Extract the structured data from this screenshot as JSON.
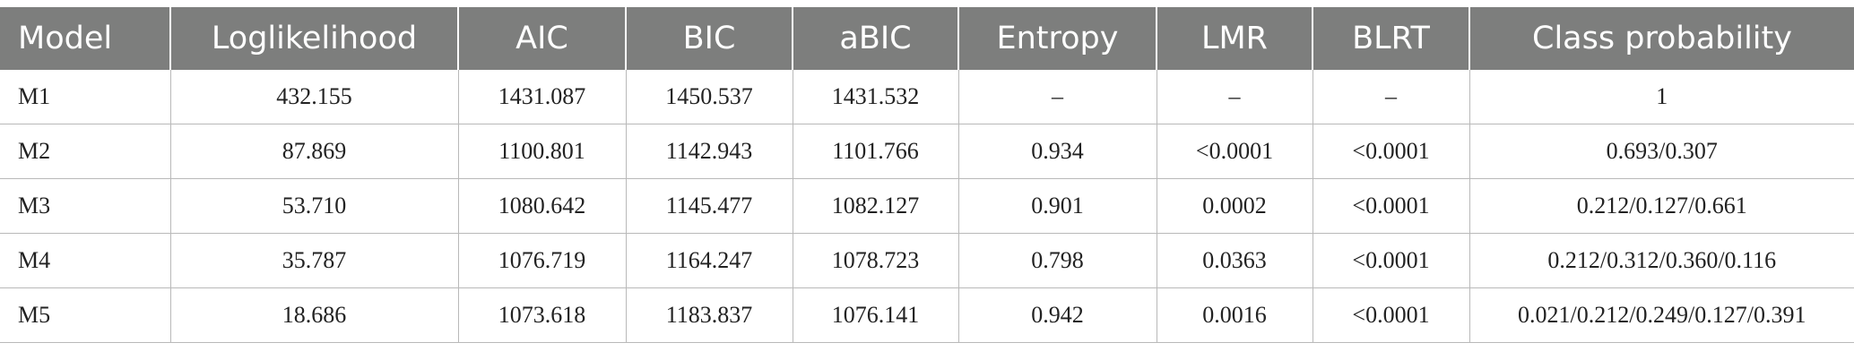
{
  "table": {
    "headers": [
      "Model",
      "Loglikelihood",
      "AIC",
      "BIC",
      "aBIC",
      "Entropy",
      "LMR",
      "BLRT",
      "Class probability"
    ],
    "rows": [
      [
        "M1",
        "432.155",
        "1431.087",
        "1450.537",
        "1431.532",
        "–",
        "–",
        "–",
        "1"
      ],
      [
        "M2",
        "87.869",
        "1100.801",
        "1142.943",
        "1101.766",
        "0.934",
        "<0.0001",
        "<0.0001",
        "0.693/0.307"
      ],
      [
        "M3",
        "53.710",
        "1080.642",
        "1145.477",
        "1082.127",
        "0.901",
        "0.0002",
        "<0.0001",
        "0.212/0.127/0.661"
      ],
      [
        "M4",
        "35.787",
        "1076.719",
        "1164.247",
        "1078.723",
        "0.798",
        "0.0363",
        "<0.0001",
        "0.212/0.312/0.360/0.116"
      ],
      [
        "M5",
        "18.686",
        "1073.618",
        "1183.837",
        "1076.141",
        "0.942",
        "0.0016",
        "<0.0001",
        "0.021/0.212/0.249/0.127/0.391"
      ]
    ]
  }
}
